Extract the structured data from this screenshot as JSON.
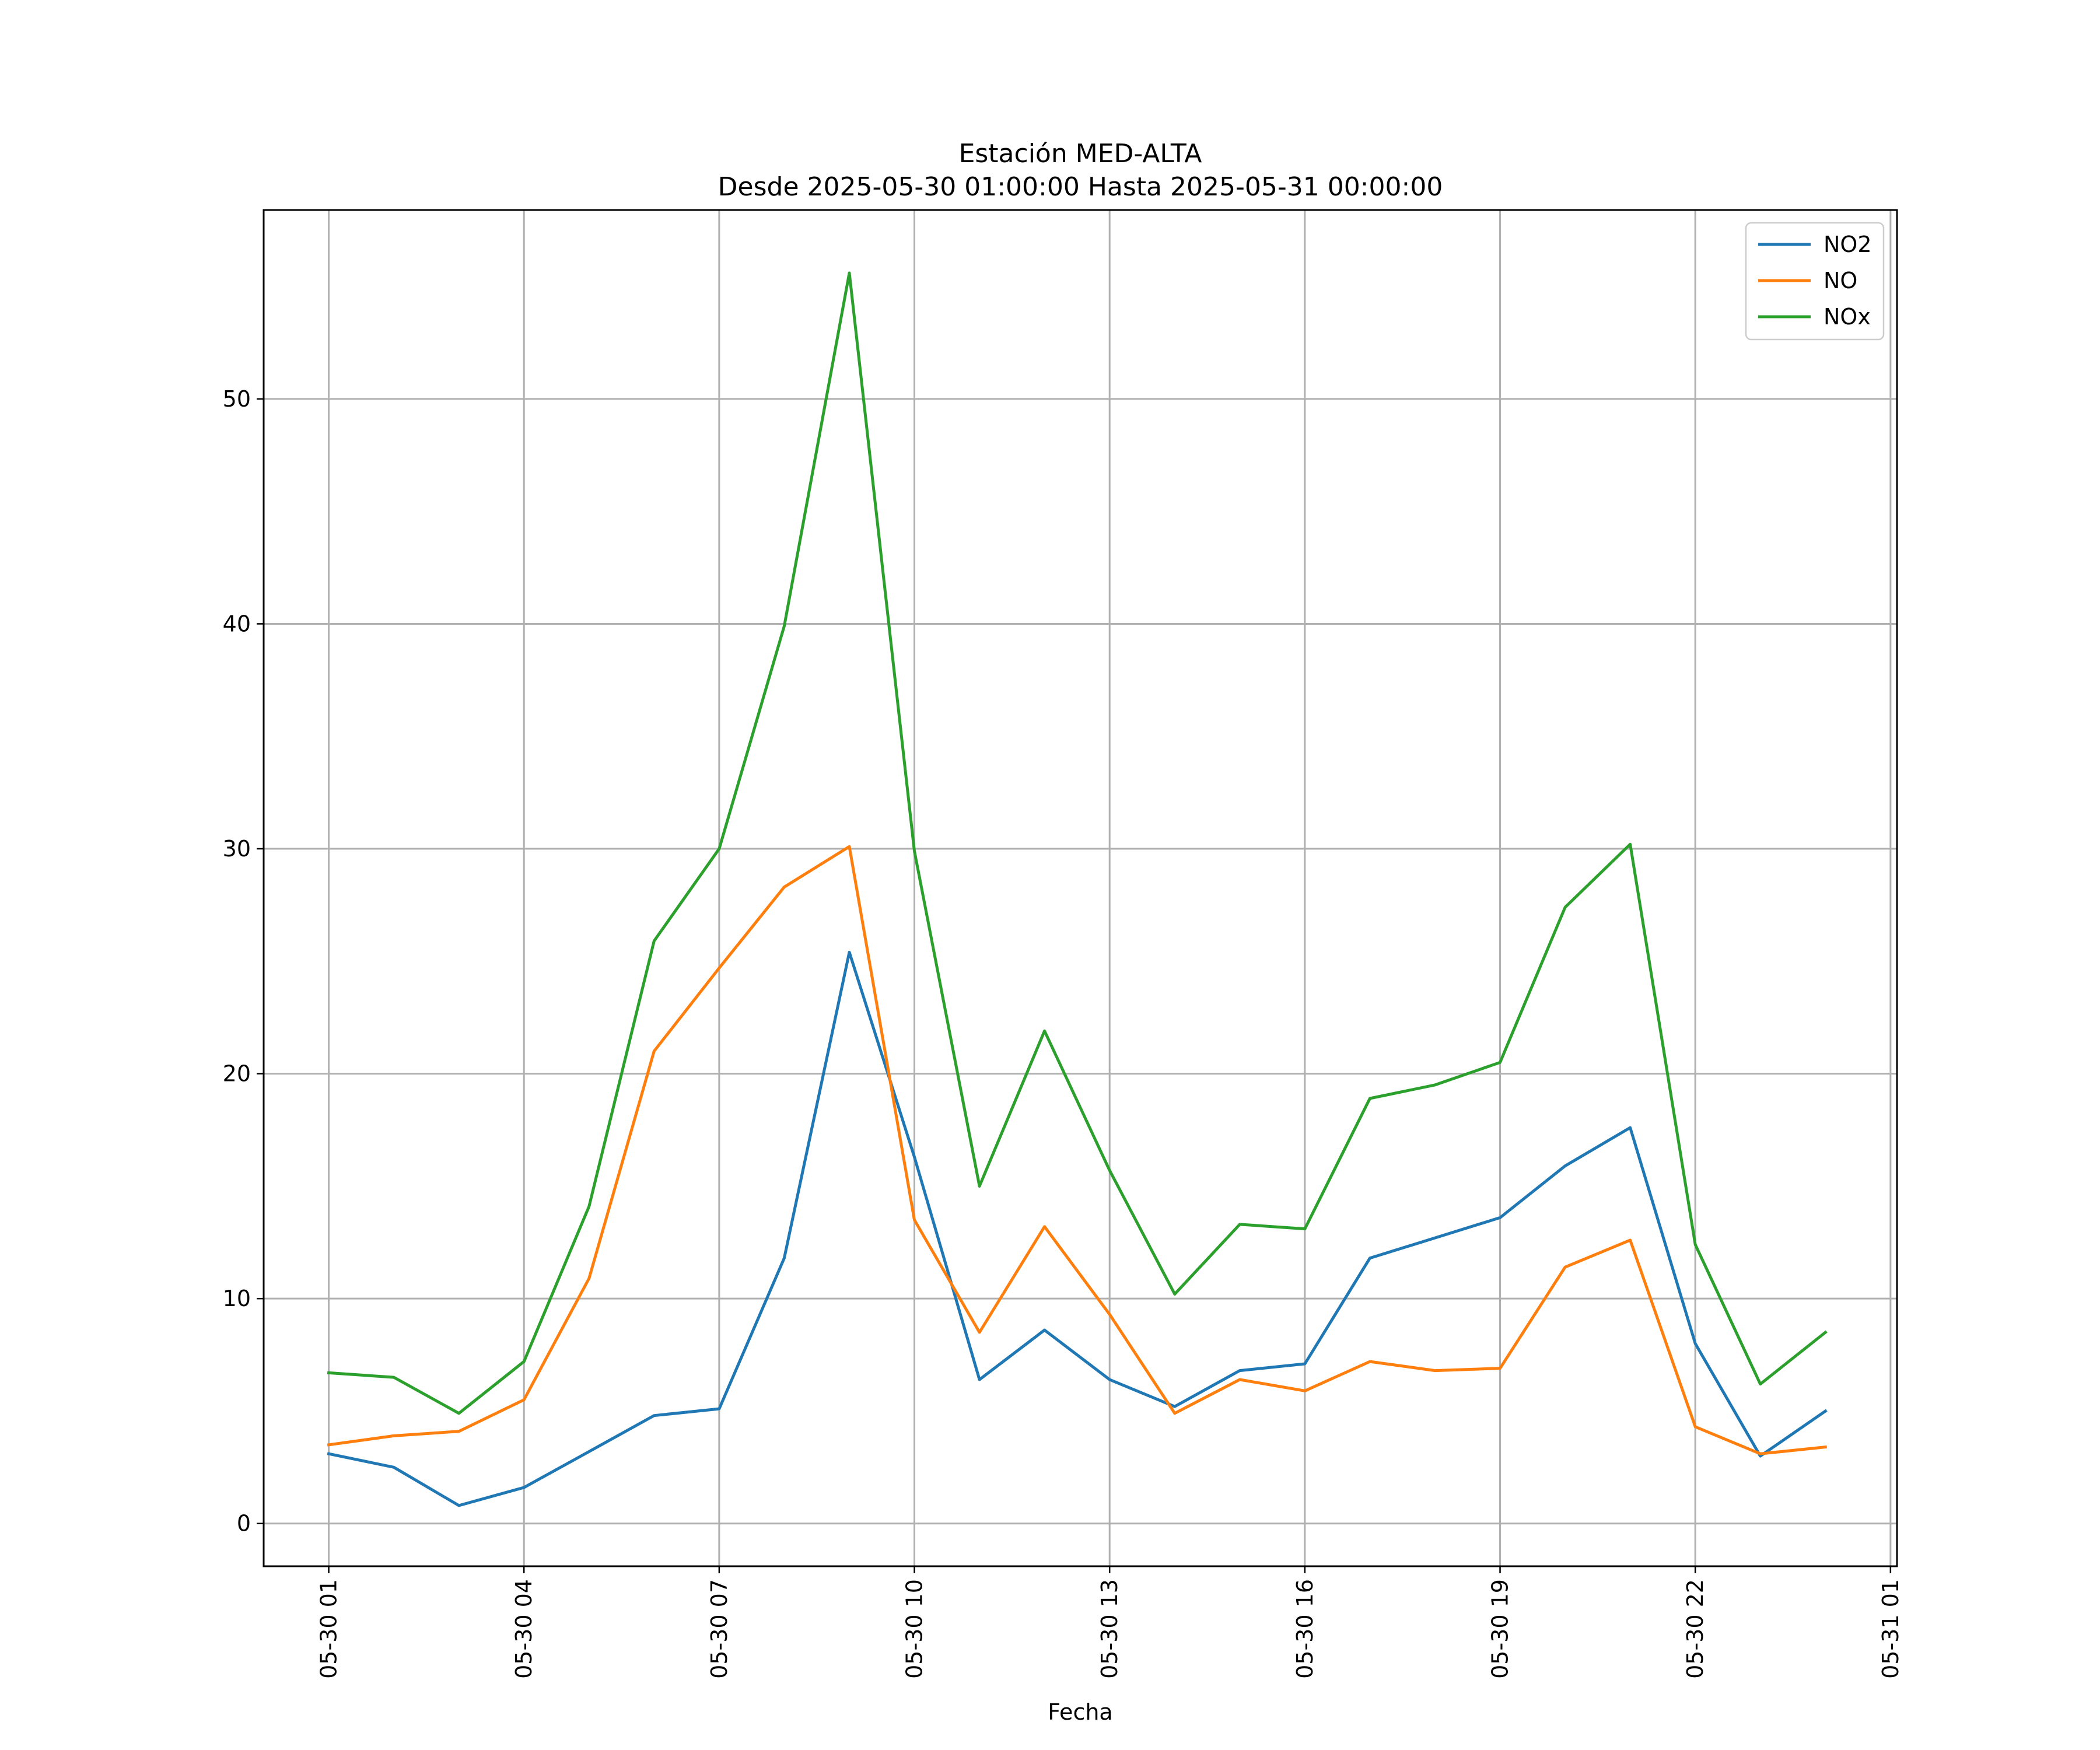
{
  "chart_data": {
    "type": "line",
    "title": "Estación MED-ALTA",
    "subtitle": "Desde 2025-05-30 01:00:00 Hasta 2025-05-31 00:00:00",
    "xlabel": "Fecha",
    "ylabel": "",
    "x": [
      "2025-05-30 01:00",
      "2025-05-30 02:00",
      "2025-05-30 03:00",
      "2025-05-30 04:00",
      "2025-05-30 05:00",
      "2025-05-30 06:00",
      "2025-05-30 07:00",
      "2025-05-30 08:00",
      "2025-05-30 09:00",
      "2025-05-30 10:00",
      "2025-05-30 11:00",
      "2025-05-30 12:00",
      "2025-05-30 13:00",
      "2025-05-30 14:00",
      "2025-05-30 15:00",
      "2025-05-30 16:00",
      "2025-05-30 17:00",
      "2025-05-30 18:00",
      "2025-05-30 19:00",
      "2025-05-30 20:00",
      "2025-05-30 21:00",
      "2025-05-30 22:00",
      "2025-05-30 23:00",
      "2025-05-31 00:00"
    ],
    "xlim": [
      "2025-05-30 00:00",
      "2025-05-31 01:06"
    ],
    "ylim": [
      -1.9,
      58.4
    ],
    "xticks": [
      {
        "value": "2025-05-30 01:00",
        "label": "05-30 01"
      },
      {
        "value": "2025-05-30 04:00",
        "label": "05-30 04"
      },
      {
        "value": "2025-05-30 07:00",
        "label": "05-30 07"
      },
      {
        "value": "2025-05-30 10:00",
        "label": "05-30 10"
      },
      {
        "value": "2025-05-30 13:00",
        "label": "05-30 13"
      },
      {
        "value": "2025-05-30 16:00",
        "label": "05-30 16"
      },
      {
        "value": "2025-05-30 19:00",
        "label": "05-30 19"
      },
      {
        "value": "2025-05-30 22:00",
        "label": "05-30 22"
      },
      {
        "value": "2025-05-31 01:00",
        "label": "05-31 01"
      }
    ],
    "yticks": [
      0,
      10,
      20,
      30,
      40,
      50
    ],
    "grid": true,
    "legend_position": "top-right",
    "series": [
      {
        "name": "NO2",
        "color": "#1f77b4",
        "values": [
          3.1,
          2.5,
          0.8,
          1.6,
          3.2,
          4.8,
          5.1,
          11.8,
          25.4,
          16.3,
          6.4,
          8.6,
          6.4,
          5.2,
          6.8,
          7.1,
          11.8,
          12.7,
          13.6,
          15.9,
          17.6,
          8.0,
          3.0,
          5.0
        ]
      },
      {
        "name": "NO",
        "color": "#ff7f0e",
        "values": [
          3.5,
          3.9,
          4.1,
          5.5,
          10.9,
          21.0,
          24.7,
          28.3,
          30.1,
          13.5,
          8.5,
          13.2,
          9.3,
          4.9,
          6.4,
          5.9,
          7.2,
          6.8,
          6.9,
          11.4,
          12.6,
          4.3,
          3.1,
          3.4
        ]
      },
      {
        "name": "NOx",
        "color": "#2ca02c",
        "values": [
          6.7,
          6.5,
          4.9,
          7.2,
          14.1,
          25.9,
          30.0,
          39.9,
          55.6,
          29.9,
          15.0,
          21.9,
          15.7,
          10.2,
          13.3,
          13.1,
          18.9,
          19.5,
          20.5,
          27.4,
          30.2,
          12.4,
          6.2,
          8.5
        ]
      }
    ]
  }
}
